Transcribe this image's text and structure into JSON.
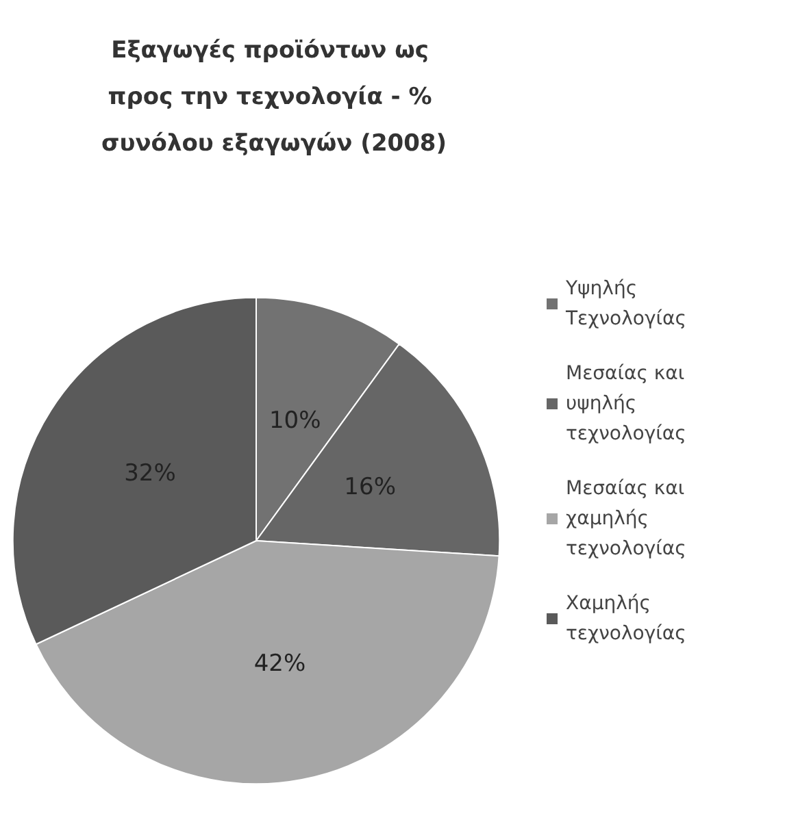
{
  "chart_data": {
    "type": "pie",
    "title": "Εξαγωγές προϊόντων ως προς την τεχνολογία - % συνόλου εξαγωγών (2008)",
    "categories": [
      "Υψηλής Τεχνολογίας",
      "Μεσαίας και υψηλής τεχνολογίας",
      "Μεσαίας και χαμηλής τεχνολογίας",
      "Χαμηλής τεχνολογίας"
    ],
    "values": [
      10,
      16,
      42,
      32
    ],
    "value_labels": [
      "10%",
      "16%",
      "42%",
      "32%"
    ],
    "colors": [
      "#727272",
      "#666666",
      "#a6a6a6",
      "#5a5a5a"
    ],
    "legend": "right"
  }
}
